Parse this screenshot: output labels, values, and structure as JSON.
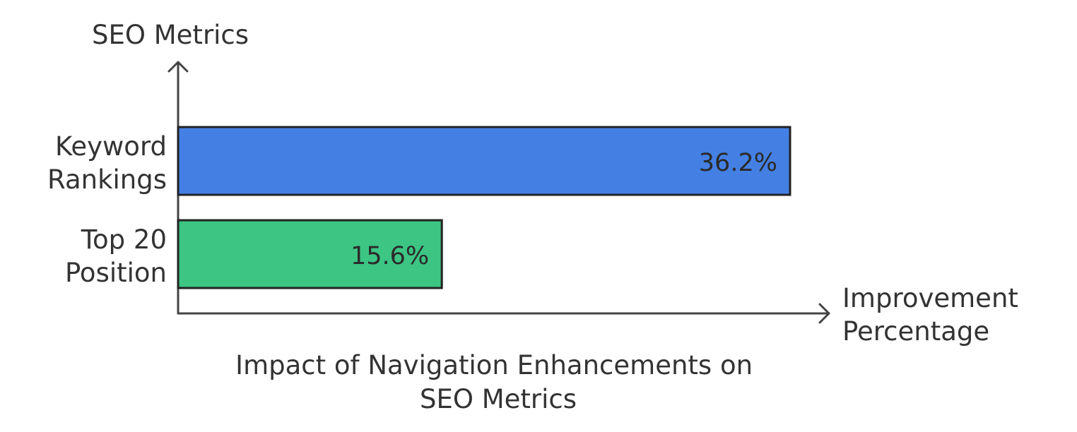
{
  "chart_data": {
    "type": "bar",
    "orientation": "horizontal",
    "title": "Impact of Navigation Enhancements on SEO Metrics",
    "xlabel": "Improvement Percentage",
    "ylabel": "SEO Metrics",
    "categories": [
      "Keyword Rankings",
      "Top 20 Position"
    ],
    "values": [
      36.2,
      15.6
    ],
    "value_labels": [
      "36.2%",
      "15.6%"
    ],
    "unit": "%",
    "xlim": [
      0,
      38.5
    ],
    "grid": false,
    "legend": "none",
    "colors": [
      "#4480e4",
      "#3cc583"
    ]
  }
}
